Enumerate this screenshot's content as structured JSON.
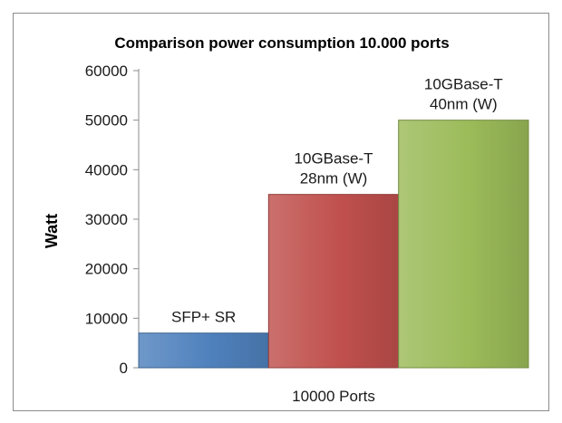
{
  "chart_data": {
    "type": "bar",
    "title": "Comparison power consumption 10.000 ports",
    "xlabel": "",
    "ylabel": "Watt",
    "categories": [
      "10000 Ports"
    ],
    "ylim": [
      0,
      60000
    ],
    "yticks": [
      "0",
      "10000",
      "20000",
      "30000",
      "40000",
      "50000",
      "60000"
    ],
    "grid": false,
    "legend": "none",
    "series": [
      {
        "name": "SFP+ SR",
        "label_lines": [
          "SFP+ SR"
        ],
        "values": [
          7000
        ],
        "color": "#4f81bd"
      },
      {
        "name": "10GBase-T 28nm (W)",
        "label_lines": [
          "10GBase-T",
          "28nm (W)"
        ],
        "values": [
          35000
        ],
        "color": "#c0504d"
      },
      {
        "name": "10GBase-T 40nm (W)",
        "label_lines": [
          "10GBase-T",
          "40nm (W)"
        ],
        "values": [
          50000
        ],
        "color": "#9bbb59"
      }
    ]
  }
}
